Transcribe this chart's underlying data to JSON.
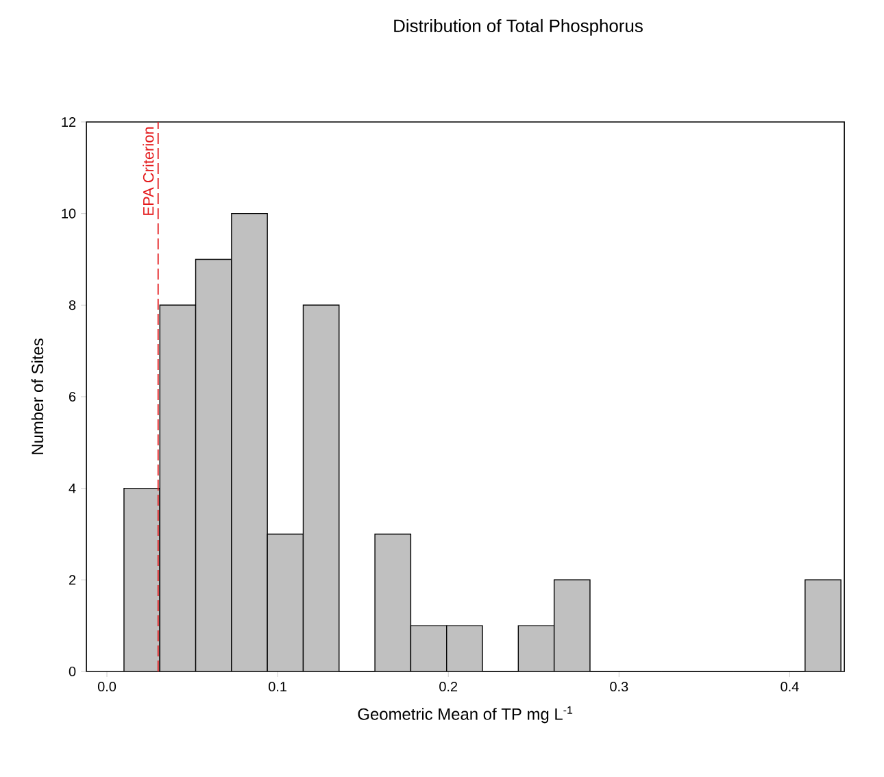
{
  "chart_data": {
    "type": "histogram",
    "title": "Distribution of Total Phosphorus",
    "xlabel": "Geometric Mean of TP mg L$^{-1}$",
    "ylabel": "Number of Sites",
    "bins": [
      0.01,
      0.031,
      0.052,
      0.073,
      0.094,
      0.115,
      0.136,
      0.157,
      0.178,
      0.199,
      0.22,
      0.241,
      0.262,
      0.283,
      0.304,
      0.325,
      0.346,
      0.367,
      0.388,
      0.409,
      0.43
    ],
    "values": [
      4,
      8,
      9,
      10,
      3,
      8,
      0,
      3,
      1,
      1,
      0,
      1,
      2,
      0,
      0,
      0,
      0,
      0,
      0,
      2
    ],
    "color": "#c0c0c0",
    "xlim": [
      -0.012,
      0.432
    ],
    "ylim": [
      0,
      12
    ],
    "xticks": [
      {
        "value": 0,
        "label": "0.0"
      },
      0.1,
      0.2,
      0.3,
      0.4
    ],
    "yticks": [
      0,
      2,
      4,
      6,
      8,
      10,
      12
    ],
    "ref_lines": [
      {
        "axis": "x",
        "value": 0.03,
        "label": "EPA Criterion",
        "color": "#e41a1c",
        "line_style": "dashed"
      }
    ],
    "grid": false
  }
}
